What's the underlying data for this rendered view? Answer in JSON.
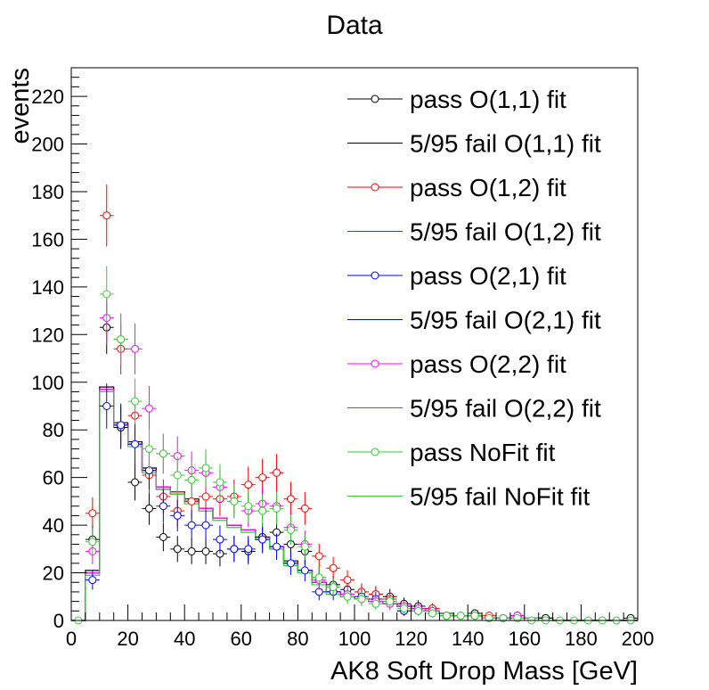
{
  "chart_data": {
    "type": "scatter",
    "title": "Data",
    "xlabel": "AK8 Soft Drop Mass [GeV]",
    "ylabel": "events",
    "xlim": [
      0,
      200
    ],
    "ylim": [
      0,
      232
    ],
    "xticks": [
      0,
      20,
      40,
      60,
      80,
      100,
      120,
      140,
      160,
      180,
      200
    ],
    "yticks": [
      0,
      20,
      40,
      60,
      80,
      100,
      120,
      140,
      160,
      180,
      200,
      220
    ],
    "bin_edges": [
      0,
      5,
      10,
      15,
      20,
      25,
      30,
      35,
      40,
      45,
      50,
      55,
      60,
      65,
      70,
      75,
      80,
      85,
      90,
      95,
      100,
      105,
      110,
      115,
      120,
      125,
      130,
      135,
      140,
      145,
      150,
      155,
      160,
      165,
      170,
      175,
      180,
      185,
      190,
      195,
      200
    ],
    "legend_position": "top-right",
    "grid": false,
    "series": [
      {
        "name": "pass O(1,1) fit",
        "kind": "points",
        "color": "#000000",
        "x": [
          7.5,
          12.5,
          17.5,
          22.5,
          27.5,
          32.5,
          37.5,
          42.5,
          47.5,
          52.5,
          57.5,
          62.5,
          67.5,
          72.5,
          77.5,
          82.5,
          87.5,
          92.5,
          97.5,
          102.5,
          107.5,
          112.5,
          117.5,
          122.5,
          127.5,
          132.5,
          142.5,
          157.5,
          167.5,
          197.5
        ],
        "y": [
          34,
          123,
          81,
          58,
          47,
          35,
          30,
          29,
          29,
          28,
          30,
          29,
          35,
          37,
          32,
          29,
          18,
          15,
          13,
          12,
          11,
          10,
          7,
          6,
          5,
          2,
          3,
          2,
          1,
          1
        ]
      },
      {
        "name": "5/95 fail O(1,1) fit",
        "kind": "hist",
        "color": "#000000",
        "values": [
          0,
          21,
          98,
          83,
          75,
          64,
          56,
          54,
          51,
          47,
          43,
          40,
          38,
          35,
          31,
          25,
          21,
          16,
          12,
          10,
          9,
          8,
          7,
          6,
          5,
          4,
          3,
          2,
          2,
          1,
          1,
          1,
          1,
          1,
          0,
          0,
          0,
          0,
          0,
          0
        ]
      },
      {
        "name": "pass O(1,2) fit",
        "kind": "points",
        "color": "#ff0000",
        "x": [
          7.5,
          12.5,
          17.5,
          22.5,
          27.5,
          32.5,
          37.5,
          42.5,
          47.5,
          52.5,
          57.5,
          62.5,
          67.5,
          72.5,
          77.5,
          82.5,
          87.5,
          92.5,
          97.5,
          102.5,
          107.5,
          112.5,
          117.5,
          122.5,
          127.5,
          132.5,
          142.5,
          147.5,
          157.5
        ],
        "y": [
          45,
          170,
          114,
          86,
          61,
          52,
          46,
          50,
          52,
          51,
          52,
          57,
          60,
          62,
          51,
          47,
          27,
          22,
          17,
          12,
          11,
          9,
          4,
          5,
          5,
          2,
          2,
          2,
          2
        ]
      },
      {
        "name": "5/95 fail O(1,2) fit",
        "kind": "hist",
        "color": "#ff0000",
        "values": [
          0,
          20,
          97,
          82,
          74,
          63,
          56,
          54,
          50,
          47,
          43,
          40,
          38,
          35,
          31,
          24,
          21,
          16,
          12,
          10,
          9,
          8,
          7,
          6,
          5,
          4,
          3,
          2,
          2,
          1,
          1,
          1,
          1,
          1,
          0,
          0,
          0,
          0,
          0,
          0
        ]
      },
      {
        "name": "pass O(2,1) fit",
        "kind": "points",
        "color": "#0000ff",
        "x": [
          7.5,
          12.5,
          17.5,
          22.5,
          27.5,
          32.5,
          37.5,
          42.5,
          47.5,
          52.5,
          57.5,
          62.5,
          67.5,
          72.5,
          77.5,
          82.5,
          87.5,
          92.5,
          97.5,
          102.5,
          107.5,
          112.5,
          117.5,
          122.5,
          127.5,
          137.5,
          142.5,
          152.5,
          157.5
        ],
        "y": [
          17,
          90,
          82,
          74,
          63,
          48,
          44,
          40,
          40,
          34,
          30,
          30,
          34,
          31,
          24,
          21,
          12,
          12,
          11,
          10,
          9,
          8,
          4,
          4,
          3,
          2,
          2,
          1,
          2
        ]
      },
      {
        "name": "5/95 fail O(2,1) fit",
        "kind": "hist",
        "color": "#0000ff",
        "values": [
          0,
          20,
          96,
          82,
          74,
          63,
          55,
          53,
          50,
          46,
          43,
          40,
          38,
          34,
          30,
          24,
          20,
          16,
          12,
          10,
          9,
          8,
          7,
          6,
          5,
          4,
          3,
          2,
          2,
          1,
          1,
          1,
          1,
          1,
          0,
          0,
          0,
          0,
          0,
          0
        ]
      },
      {
        "name": "pass O(2,2) fit",
        "kind": "points",
        "color": "#ff00ff",
        "x": [
          7.5,
          12.5,
          17.5,
          22.5,
          27.5,
          32.5,
          37.5,
          42.5,
          47.5,
          52.5,
          57.5,
          62.5,
          67.5,
          72.5,
          77.5,
          82.5,
          87.5,
          92.5,
          97.5,
          102.5,
          107.5,
          112.5,
          117.5,
          122.5,
          127.5,
          132.5,
          142.5,
          147.5,
          157.5
        ],
        "y": [
          29,
          127,
          118,
          114,
          89,
          70,
          69,
          63,
          62,
          56,
          50,
          46,
          49,
          48,
          39,
          32,
          17,
          14,
          11,
          9,
          8,
          7,
          6,
          5,
          4,
          2,
          2,
          1,
          2
        ]
      },
      {
        "name": "5/95 fail O(2,2) fit",
        "kind": "hist",
        "color": "#ff00ff",
        "values": [
          0,
          20,
          97,
          82,
          74,
          63,
          56,
          53,
          50,
          47,
          43,
          40,
          38,
          35,
          31,
          24,
          21,
          16,
          12,
          10,
          9,
          8,
          7,
          6,
          5,
          4,
          3,
          2,
          2,
          1,
          1,
          1,
          1,
          1,
          0,
          0,
          0,
          0,
          0,
          0
        ]
      },
      {
        "name": "pass NoFit fit",
        "kind": "points",
        "color": "#33cc33",
        "x": [
          2.5,
          7.5,
          12.5,
          17.5,
          22.5,
          27.5,
          32.5,
          37.5,
          42.5,
          47.5,
          52.5,
          57.5,
          62.5,
          67.5,
          72.5,
          77.5,
          82.5,
          87.5,
          92.5,
          97.5,
          102.5,
          107.5,
          112.5,
          117.5,
          122.5,
          127.5,
          132.5,
          137.5,
          142.5,
          147.5,
          152.5,
          157.5,
          162.5,
          167.5,
          172.5,
          177.5,
          182.5,
          187.5,
          192.5,
          197.5
        ],
        "y": [
          0,
          33,
          137,
          118,
          92,
          72,
          70,
          61,
          59,
          64,
          58,
          50,
          48,
          46,
          47,
          38,
          31,
          18,
          14,
          10,
          9,
          7,
          8,
          5,
          4,
          3,
          2,
          2,
          2,
          1,
          1,
          1,
          0,
          0,
          0,
          0,
          0,
          0,
          0,
          0
        ]
      },
      {
        "name": "5/95 fail NoFit fit",
        "kind": "hist",
        "color": "#33cc33",
        "values": [
          0,
          19,
          96,
          81,
          73,
          62,
          55,
          53,
          49,
          46,
          42,
          39,
          37,
          34,
          30,
          23,
          20,
          15,
          11,
          10,
          9,
          8,
          7,
          6,
          5,
          4,
          3,
          2,
          2,
          1,
          1,
          1,
          1,
          1,
          0,
          0,
          0,
          0,
          0,
          0
        ]
      }
    ]
  }
}
